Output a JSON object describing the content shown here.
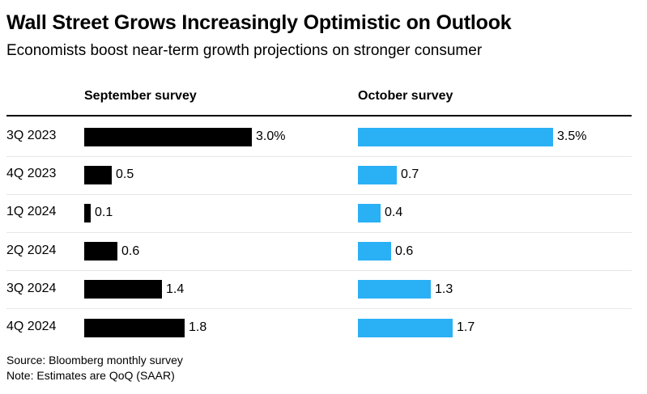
{
  "title": "Wall Street Grows Increasingly Optimistic on Outlook",
  "subtitle": "Economists boost near-term growth projections on stronger consumer",
  "source": "Source: Bloomberg monthly survey",
  "note": "Note: Estimates are QoQ (SAAR)",
  "colors": {
    "september": "#000000",
    "october": "#2ab0f5"
  },
  "chart_data": {
    "type": "bar",
    "orientation": "horizontal",
    "categories": [
      "3Q 2023",
      "4Q 2023",
      "1Q 2024",
      "2Q 2024",
      "3Q 2024",
      "4Q 2024"
    ],
    "series": [
      {
        "name": "September survey",
        "values": [
          3.0,
          0.5,
          0.1,
          0.6,
          1.4,
          1.8
        ],
        "labels": [
          "3.0%",
          "0.5",
          "0.1",
          "0.6",
          "1.4",
          "1.8"
        ]
      },
      {
        "name": "October survey",
        "values": [
          3.5,
          0.7,
          0.4,
          0.6,
          1.3,
          1.7
        ],
        "labels": [
          "3.5%",
          "0.7",
          "0.4",
          "0.6",
          "1.3",
          "1.7"
        ]
      }
    ],
    "xlim": [
      0,
      3.5
    ],
    "grid": false
  }
}
